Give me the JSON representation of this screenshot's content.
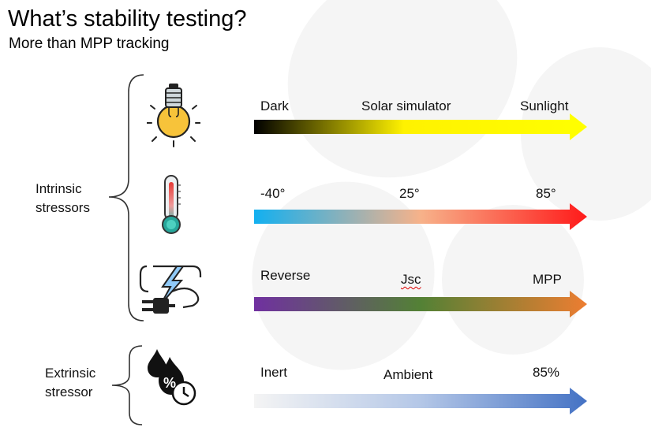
{
  "title": "What’s stability testing?",
  "subtitle": "More than MPP tracking",
  "groups": {
    "intrinsic": {
      "label_line1": "Intrinsic",
      "label_line2": "stressors"
    },
    "extrinsic": {
      "label_line1": "Extrinsic",
      "label_line2": "stressor"
    }
  },
  "rows": [
    {
      "icon": "lightbulb-icon",
      "start": "Dark",
      "middle": "Solar simulator",
      "end": "Sunlight",
      "gradient": [
        "#000000",
        "#fff200",
        "#ffff00"
      ]
    },
    {
      "icon": "thermometer-icon",
      "start": "-40°",
      "middle": "25°",
      "end": "85°",
      "gradient": [
        "#12b0f0",
        "#f7b28a",
        "#ff1a1a"
      ]
    },
    {
      "icon": "plug-lightning-icon",
      "start": "Reverse",
      "middle": "Jsc",
      "end": "MPP",
      "gradient": [
        "#7030a0",
        "#538135",
        "#ed7d31"
      ]
    },
    {
      "icon": "humidity-drops-icon",
      "start": "Inert",
      "middle": "Ambient",
      "end": "85%",
      "gradient": [
        "#f4f4f4",
        "#b4c7e7",
        "#4472c4"
      ]
    }
  ],
  "humidity_symbol": "%"
}
